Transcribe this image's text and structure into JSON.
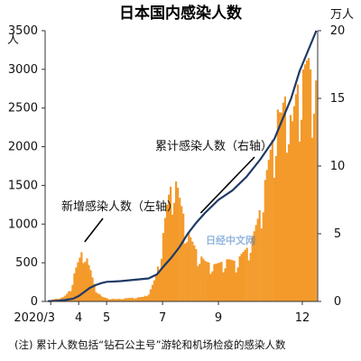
{
  "chart_data": {
    "type": "bar+line",
    "title": "日本国内感染人数",
    "left_axis": {
      "unit": "人",
      "ticks": [
        0,
        500,
        1000,
        1500,
        2000,
        2500,
        3000,
        3500
      ],
      "ylim": [
        0,
        3500
      ]
    },
    "right_axis": {
      "unit": "万人",
      "ticks": [
        0,
        5,
        10,
        15,
        20
      ],
      "ylim": [
        0,
        20
      ]
    },
    "x_ticks": [
      {
        "label": "2020/3",
        "month": 3
      },
      {
        "label": "4",
        "month": 4
      },
      {
        "label": "5",
        "month": 5
      },
      {
        "label": "7",
        "month": 7
      },
      {
        "label": "9",
        "month": 9
      },
      {
        "label": "12",
        "month": 12
      }
    ],
    "x_range_months": [
      2.8,
      12.55
    ],
    "series": [
      {
        "name": "新增感染人数",
        "axis": "left",
        "color": "#f39a2b",
        "type": "bar",
        "points": [
          [
            2.9,
            10
          ],
          [
            3.0,
            20
          ],
          [
            3.1,
            30
          ],
          [
            3.2,
            40
          ],
          [
            3.3,
            45
          ],
          [
            3.4,
            55
          ],
          [
            3.5,
            80
          ],
          [
            3.6,
            120
          ],
          [
            3.7,
            200
          ],
          [
            3.8,
            350
          ],
          [
            3.9,
            470
          ],
          [
            4.0,
            560
          ],
          [
            4.05,
            620
          ],
          [
            4.1,
            660
          ],
          [
            4.15,
            700
          ],
          [
            4.2,
            640
          ],
          [
            4.25,
            580
          ],
          [
            4.3,
            500
          ],
          [
            4.4,
            400
          ],
          [
            4.5,
            250
          ],
          [
            4.6,
            160
          ],
          [
            4.7,
            100
          ],
          [
            4.8,
            60
          ],
          [
            5.0,
            40
          ],
          [
            5.3,
            30
          ],
          [
            5.6,
            40
          ],
          [
            6.0,
            50
          ],
          [
            6.3,
            60
          ],
          [
            6.5,
            120
          ],
          [
            6.7,
            300
          ],
          [
            6.9,
            600
          ],
          [
            7.0,
            900
          ],
          [
            7.1,
            1200
          ],
          [
            7.2,
            1400
          ],
          [
            7.3,
            1550
          ],
          [
            7.4,
            1600
          ],
          [
            7.5,
            1500
          ],
          [
            7.6,
            1300
          ],
          [
            7.8,
            1000
          ],
          [
            8.0,
            800
          ],
          [
            8.2,
            650
          ],
          [
            8.5,
            520
          ],
          [
            8.8,
            480
          ],
          [
            9.0,
            500
          ],
          [
            9.3,
            550
          ],
          [
            9.6,
            520
          ],
          [
            9.8,
            620
          ],
          [
            10.0,
            700
          ],
          [
            10.2,
            850
          ],
          [
            10.4,
            1100
          ],
          [
            10.6,
            1500
          ],
          [
            10.8,
            1900
          ],
          [
            11.0,
            2300
          ],
          [
            11.1,
            2500
          ],
          [
            11.2,
            2400
          ],
          [
            11.3,
            2600
          ],
          [
            11.4,
            2700
          ],
          [
            11.5,
            2500
          ],
          [
            11.6,
            2300
          ],
          [
            11.7,
            2600
          ],
          [
            11.8,
            2800
          ],
          [
            11.9,
            2900
          ],
          [
            12.0,
            3000
          ],
          [
            12.1,
            3100
          ],
          [
            12.2,
            3150
          ],
          [
            12.3,
            2900
          ],
          [
            12.4,
            3050
          ],
          [
            12.5,
            2700
          ]
        ]
      },
      {
        "name": "累计感染人数",
        "axis": "right",
        "color": "#1f3a66",
        "type": "line",
        "points": [
          [
            2.9,
            0.02
          ],
          [
            3.2,
            0.05
          ],
          [
            3.5,
            0.1
          ],
          [
            3.8,
            0.2
          ],
          [
            4.0,
            0.4
          ],
          [
            4.2,
            0.7
          ],
          [
            4.4,
            1.0
          ],
          [
            4.6,
            1.2
          ],
          [
            4.8,
            1.35
          ],
          [
            5.0,
            1.45
          ],
          [
            5.5,
            1.5
          ],
          [
            6.0,
            1.6
          ],
          [
            6.5,
            1.7
          ],
          [
            6.8,
            2.0
          ],
          [
            7.0,
            2.5
          ],
          [
            7.3,
            3.2
          ],
          [
            7.6,
            4.0
          ],
          [
            7.9,
            5.0
          ],
          [
            8.2,
            5.8
          ],
          [
            8.5,
            6.5
          ],
          [
            9.0,
            7.5
          ],
          [
            9.5,
            8.2
          ],
          [
            10.0,
            9.2
          ],
          [
            10.5,
            10.5
          ],
          [
            11.0,
            12.0
          ],
          [
            11.3,
            13.5
          ],
          [
            11.6,
            15.0
          ],
          [
            11.9,
            17.0
          ],
          [
            12.2,
            18.5
          ],
          [
            12.5,
            20.0
          ]
        ]
      }
    ],
    "annotations": [
      {
        "text": "新增感染人数（左轴）",
        "target": [
          4.15,
          700
        ]
      },
      {
        "text": "累计感染人数（右轴）",
        "target_right": [
          8.3,
          6.4
        ]
      }
    ],
    "footnote": "(注) 累计人数包括“钻石公主号”游轮和机场检疫的感染人数",
    "watermark": "日经中文网"
  }
}
